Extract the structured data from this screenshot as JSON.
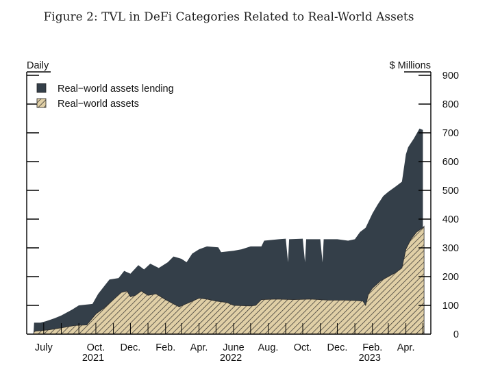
{
  "chart_data": {
    "type": "area",
    "title": "Figure 2: TVL in DeFi Categories Related to Real-World Assets",
    "frequency_label": "Daily",
    "ylabel": "$ Millions",
    "ylim": [
      0,
      900
    ],
    "yticks": [
      0,
      100,
      200,
      300,
      400,
      500,
      600,
      700,
      800,
      900
    ],
    "x_range": [
      "2021-06-01",
      "2023-05-15"
    ],
    "month_ticks": [
      {
        "label": "July",
        "date": "2021-07-01"
      },
      {
        "label": "Oct.",
        "date": "2021-10-01"
      },
      {
        "label": "Dec.",
        "date": "2021-12-01"
      },
      {
        "label": "Feb.",
        "date": "2022-02-01"
      },
      {
        "label": "Apr.",
        "date": "2022-04-01"
      },
      {
        "label": "June",
        "date": "2022-06-01"
      },
      {
        "label": "Aug.",
        "date": "2022-08-01"
      },
      {
        "label": "Oct.",
        "date": "2022-10-01"
      },
      {
        "label": "Dec.",
        "date": "2022-12-01"
      },
      {
        "label": "Feb.",
        "date": "2023-02-01"
      },
      {
        "label": "Apr.",
        "date": "2023-04-01"
      }
    ],
    "year_labels": [
      {
        "label": "2021",
        "date": "2021-10-01"
      },
      {
        "label": "2022",
        "date": "2022-06-01"
      },
      {
        "label": "2023",
        "date": "2023-02-01"
      }
    ],
    "legend": {
      "position": "top-left",
      "entries": [
        {
          "label": "Real−world assets lending",
          "style": "solid",
          "color": "#343f49"
        },
        {
          "label": "Real−world assets",
          "style": "hatched",
          "color": "#e0cfa6"
        }
      ]
    },
    "series": [
      {
        "name": "Real−world assets lending",
        "note": "total TVL (top of stacked area)",
        "points": [
          [
            "2021-06-13",
            0
          ],
          [
            "2021-06-14",
            40
          ],
          [
            "2021-06-25",
            40
          ],
          [
            "2021-07-05",
            45
          ],
          [
            "2021-07-20",
            55
          ],
          [
            "2021-08-01",
            65
          ],
          [
            "2021-08-20",
            85
          ],
          [
            "2021-09-01",
            100
          ],
          [
            "2021-09-25",
            105
          ],
          [
            "2021-10-05",
            140
          ],
          [
            "2021-10-15",
            165
          ],
          [
            "2021-10-25",
            190
          ],
          [
            "2021-11-10",
            195
          ],
          [
            "2021-11-20",
            220
          ],
          [
            "2021-12-01",
            210
          ],
          [
            "2021-12-15",
            240
          ],
          [
            "2021-12-25",
            225
          ],
          [
            "2022-01-05",
            245
          ],
          [
            "2022-01-20",
            230
          ],
          [
            "2022-02-05",
            250
          ],
          [
            "2022-02-15",
            270
          ],
          [
            "2022-03-01",
            262
          ],
          [
            "2022-03-10",
            250
          ],
          [
            "2022-03-20",
            280
          ],
          [
            "2022-04-01",
            295
          ],
          [
            "2022-04-15",
            305
          ],
          [
            "2022-05-05",
            302
          ],
          [
            "2022-05-10",
            285
          ],
          [
            "2022-06-01",
            290
          ],
          [
            "2022-06-15",
            295
          ],
          [
            "2022-07-01",
            305
          ],
          [
            "2022-07-20",
            305
          ],
          [
            "2022-07-25",
            325
          ],
          [
            "2022-08-20",
            330
          ],
          [
            "2022-09-01",
            332
          ],
          [
            "2022-09-05",
            250
          ],
          [
            "2022-09-07",
            330
          ],
          [
            "2022-10-01",
            332
          ],
          [
            "2022-10-05",
            250
          ],
          [
            "2022-10-07",
            330
          ],
          [
            "2022-11-01",
            330
          ],
          [
            "2022-11-05",
            250
          ],
          [
            "2022-11-07",
            330
          ],
          [
            "2022-12-01",
            330
          ],
          [
            "2022-12-20",
            325
          ],
          [
            "2023-01-01",
            330
          ],
          [
            "2023-01-10",
            355
          ],
          [
            "2023-01-20",
            370
          ],
          [
            "2023-02-01",
            420
          ],
          [
            "2023-02-10",
            450
          ],
          [
            "2023-02-20",
            480
          ],
          [
            "2023-03-01",
            495
          ],
          [
            "2023-03-15",
            515
          ],
          [
            "2023-03-25",
            530
          ],
          [
            "2023-04-01",
            625
          ],
          [
            "2023-04-05",
            650
          ],
          [
            "2023-04-15",
            680
          ],
          [
            "2023-04-25",
            715
          ],
          [
            "2023-05-01",
            710
          ]
        ]
      },
      {
        "name": "Real−world assets",
        "note": "lower hatched area",
        "points": [
          [
            "2021-06-13",
            0
          ],
          [
            "2021-06-14",
            10
          ],
          [
            "2021-07-10",
            15
          ],
          [
            "2021-08-01",
            22
          ],
          [
            "2021-08-25",
            30
          ],
          [
            "2021-09-15",
            32
          ],
          [
            "2021-10-01",
            70
          ],
          [
            "2021-10-15",
            90
          ],
          [
            "2021-11-01",
            120
          ],
          [
            "2021-11-15",
            145
          ],
          [
            "2021-11-25",
            150
          ],
          [
            "2021-12-01",
            130
          ],
          [
            "2021-12-10",
            135
          ],
          [
            "2021-12-20",
            150
          ],
          [
            "2022-01-01",
            135
          ],
          [
            "2022-01-15",
            140
          ],
          [
            "2022-02-01",
            120
          ],
          [
            "2022-02-15",
            105
          ],
          [
            "2022-02-25",
            95
          ],
          [
            "2022-03-15",
            110
          ],
          [
            "2022-04-01",
            125
          ],
          [
            "2022-04-15",
            122
          ],
          [
            "2022-05-01",
            115
          ],
          [
            "2022-05-20",
            110
          ],
          [
            "2022-06-01",
            100
          ],
          [
            "2022-07-01",
            98
          ],
          [
            "2022-07-10",
            100
          ],
          [
            "2022-07-20",
            120
          ],
          [
            "2022-08-15",
            122
          ],
          [
            "2022-09-15",
            120
          ],
          [
            "2022-10-15",
            122
          ],
          [
            "2022-11-15",
            118
          ],
          [
            "2022-12-15",
            118
          ],
          [
            "2023-01-01",
            117
          ],
          [
            "2023-01-15",
            115
          ],
          [
            "2023-01-20",
            100
          ],
          [
            "2023-01-25",
            140
          ],
          [
            "2023-02-01",
            160
          ],
          [
            "2023-02-15",
            185
          ],
          [
            "2023-03-01",
            200
          ],
          [
            "2023-03-15",
            215
          ],
          [
            "2023-03-25",
            230
          ],
          [
            "2023-04-01",
            295
          ],
          [
            "2023-04-10",
            330
          ],
          [
            "2023-04-20",
            355
          ],
          [
            "2023-05-01",
            370
          ],
          [
            "2023-05-03",
            375
          ]
        ]
      }
    ]
  }
}
